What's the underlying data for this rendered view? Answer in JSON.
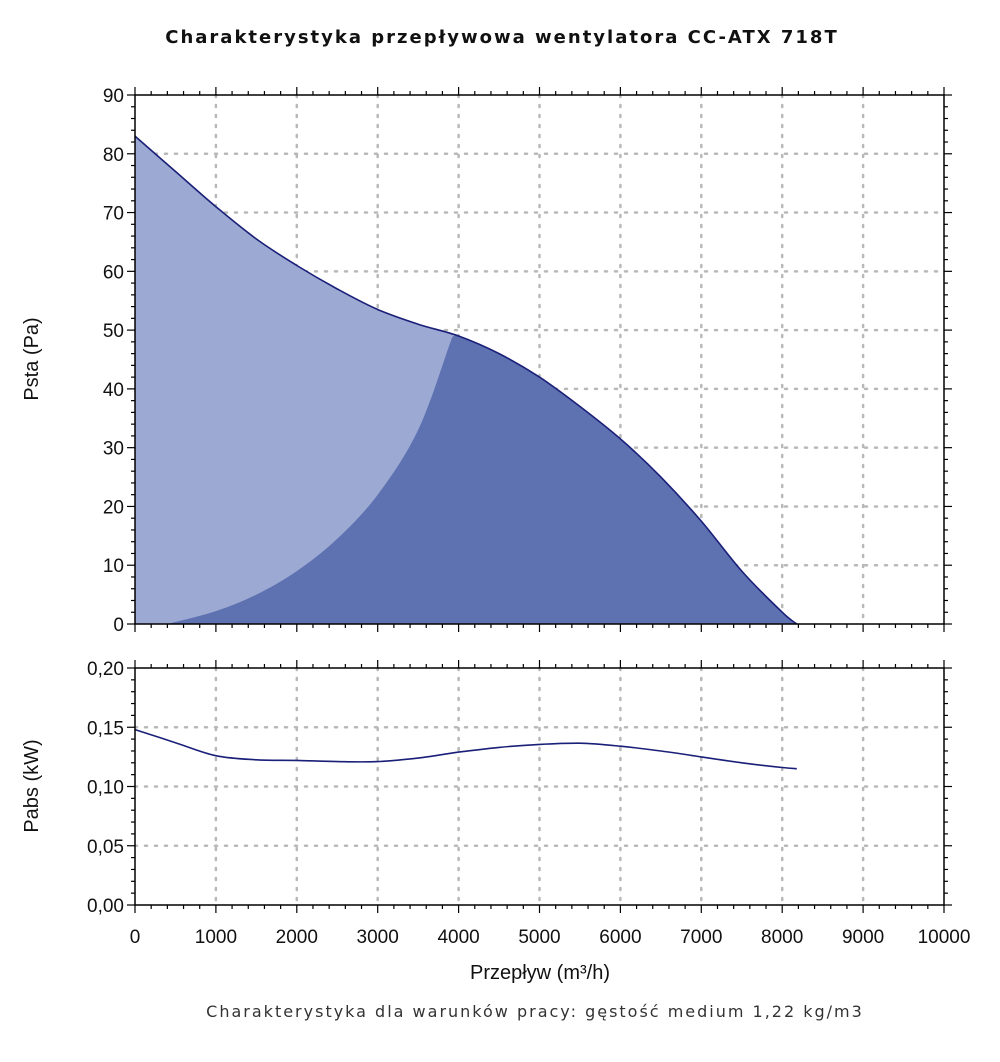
{
  "chart_data": [
    {
      "type": "area",
      "title": "Charakterystyka przepływowa wentylatora CC-ATX 718T",
      "ylabel": "Psta (Pa)",
      "xlim": [
        0,
        10000
      ],
      "ylim": [
        0,
        90
      ],
      "x_ticks": [
        "0",
        "1000",
        "2000",
        "3000",
        "4000",
        "5000",
        "6000",
        "7000",
        "8000",
        "9000",
        "10000"
      ],
      "y_ticks": [
        "0",
        "10",
        "20",
        "30",
        "40",
        "50",
        "60",
        "70",
        "80",
        "90"
      ],
      "grid": true,
      "colors": {
        "line": "#1a1f78",
        "fill_light": "#9ca9d2",
        "fill_dark": "#5e72b2"
      },
      "series": [
        {
          "x": [
            0,
            500,
            1000,
            1500,
            2000,
            2500,
            3000,
            3500,
            4000,
            4500,
            5000,
            5500,
            6000,
            6500,
            7000,
            7500,
            8000,
            8180
          ],
          "values": [
            83,
            77,
            71,
            65.5,
            61,
            57,
            53.5,
            51,
            49,
            46,
            42,
            37,
            31.5,
            25,
            17.5,
            9,
            2,
            0
          ]
        },
        {
          "x": [
            400,
            1000,
            1500,
            2000,
            2500,
            3000,
            3500,
            3900
          ],
          "values": [
            0,
            2.2,
            5,
            9,
            14.5,
            22,
            33,
            48
          ]
        }
      ]
    },
    {
      "type": "line",
      "ylabel": "Pabs (kW)",
      "xlabel": "Przepływ (m³/h)",
      "xlim": [
        0,
        10000
      ],
      "ylim": [
        0,
        0.2
      ],
      "x_ticks": [
        "0",
        "1000",
        "2000",
        "3000",
        "4000",
        "5000",
        "6000",
        "7000",
        "8000",
        "9000",
        "10000"
      ],
      "y_ticks": [
        "0,00",
        "0,05",
        "0,10",
        "0,15",
        "0,20"
      ],
      "grid": true,
      "colors": {
        "line": "#1a1f78"
      },
      "series": [
        {
          "x": [
            0,
            500,
            1000,
            1500,
            2000,
            2500,
            3000,
            3500,
            4000,
            4500,
            5000,
            5500,
            6000,
            6500,
            7000,
            7500,
            8000,
            8180
          ],
          "values": [
            0.148,
            0.137,
            0.126,
            0.1225,
            0.122,
            0.121,
            0.121,
            0.124,
            0.129,
            0.133,
            0.1355,
            0.1365,
            0.134,
            0.13,
            0.125,
            0.12,
            0.116,
            0.115
          ]
        }
      ]
    }
  ],
  "footer": "Charakterystyka dla warunków pracy: gęstość medium 1,22 kg/m3"
}
